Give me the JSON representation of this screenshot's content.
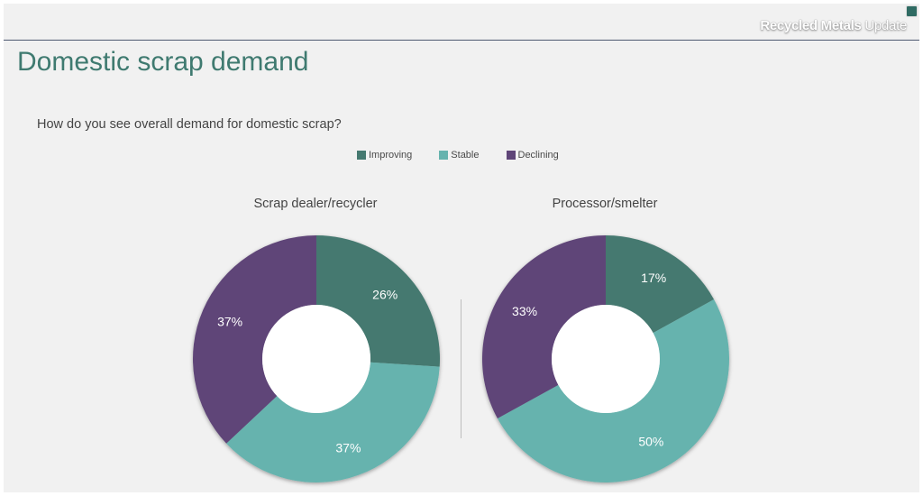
{
  "brand": {
    "bold": "Recycled Metals",
    "light": "Update"
  },
  "slide_title": "Domestic scrap demand",
  "question": "How do you see overall demand for domestic scrap?",
  "colors": {
    "Improving": "#457970",
    "Stable": "#66b3ae",
    "Declining": "#5f4578",
    "background": "#f1f1f1"
  },
  "legend": [
    {
      "label": "Improving",
      "color": "#457970"
    },
    {
      "label": "Stable",
      "color": "#66b3ae"
    },
    {
      "label": "Declining",
      "color": "#5f4578"
    }
  ],
  "chart_data": [
    {
      "type": "pie",
      "variant": "donut",
      "title": "Scrap dealer/recycler",
      "categories": [
        "Improving",
        "Stable",
        "Declining"
      ],
      "values": [
        26,
        37,
        37
      ],
      "labels": [
        "26%",
        "37%",
        "37%"
      ]
    },
    {
      "type": "pie",
      "variant": "donut",
      "title": "Processor/smelter",
      "categories": [
        "Improving",
        "Stable",
        "Declining"
      ],
      "values": [
        17,
        50,
        33
      ],
      "labels": [
        "17%",
        "50%",
        "33%"
      ]
    }
  ]
}
